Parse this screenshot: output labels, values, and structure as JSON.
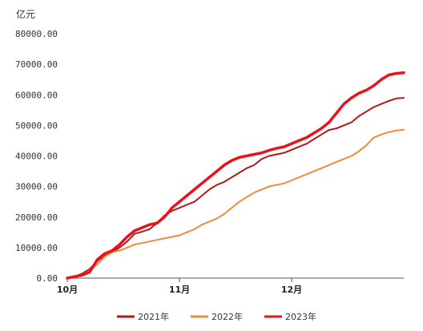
{
  "chart_data": {
    "type": "line",
    "unit_label": "亿元",
    "ylim": [
      0,
      80000
    ],
    "yticks": [
      0,
      10000,
      20000,
      30000,
      40000,
      50000,
      60000,
      70000,
      80000
    ],
    "ytick_labels": [
      "0.00",
      "10000.00",
      "20000.00",
      "30000.00",
      "40000.00",
      "50000.00",
      "60000.00",
      "70000.00",
      "80000.00"
    ],
    "xlim": [
      0,
      90
    ],
    "xticks": [
      {
        "label": "10月",
        "x": 0
      },
      {
        "label": "11月",
        "x": 30
      },
      {
        "label": "12月",
        "x": 60
      }
    ],
    "grid": false,
    "legend_position": "bottom",
    "series": [
      {
        "name": "2021年",
        "color": "#b3181b",
        "width": 2,
        "x": [
          0,
          2,
          4,
          6,
          8,
          10,
          12,
          14,
          16,
          18,
          20,
          22,
          24,
          26,
          28,
          30,
          32,
          34,
          36,
          38,
          40,
          42,
          44,
          46,
          48,
          50,
          52,
          54,
          56,
          58,
          60,
          62,
          64,
          66,
          68,
          70,
          72,
          74,
          76,
          78,
          80,
          82,
          84,
          86,
          88,
          90
        ],
        "values": [
          0,
          500,
          1500,
          3000,
          5500,
          7500,
          8500,
          10000,
          12000,
          14500,
          15200,
          16000,
          18000,
          20500,
          22000,
          23000,
          24000,
          25000,
          27000,
          29000,
          30500,
          31500,
          33000,
          34500,
          36000,
          37000,
          39000,
          40000,
          40500,
          41000,
          42000,
          43000,
          44000,
          45500,
          47000,
          48500,
          49000,
          50000,
          51000,
          53000,
          54500,
          56000,
          57000,
          58000,
          58800,
          59000
        ]
      },
      {
        "name": "2022年",
        "color": "#f08b3a",
        "width": 2,
        "x": [
          0,
          2,
          4,
          6,
          8,
          10,
          12,
          14,
          16,
          18,
          20,
          22,
          24,
          26,
          28,
          30,
          32,
          34,
          36,
          38,
          40,
          42,
          44,
          46,
          48,
          50,
          52,
          54,
          56,
          58,
          60,
          62,
          64,
          66,
          68,
          70,
          72,
          74,
          76,
          78,
          80,
          82,
          84,
          86,
          88,
          90
        ],
        "values": [
          0,
          300,
          1000,
          2500,
          4500,
          7000,
          8500,
          9000,
          10000,
          11000,
          11500,
          12000,
          12500,
          13000,
          13500,
          14000,
          15000,
          16000,
          17500,
          18500,
          19500,
          21000,
          23000,
          25000,
          26500,
          28000,
          29000,
          30000,
          30500,
          31000,
          32000,
          33000,
          34000,
          35000,
          36000,
          37000,
          38000,
          39000,
          40000,
          41500,
          43500,
          46000,
          47000,
          47800,
          48300,
          48600
        ]
      },
      {
        "name": "2023年",
        "color": "#e8141b",
        "width": 3.5,
        "x": [
          0,
          2,
          4,
          6,
          8,
          10,
          12,
          14,
          16,
          18,
          20,
          22,
          24,
          26,
          28,
          30,
          32,
          34,
          36,
          38,
          40,
          42,
          44,
          46,
          48,
          50,
          52,
          54,
          56,
          58,
          60,
          62,
          64,
          66,
          68,
          70,
          72,
          74,
          76,
          78,
          80,
          82,
          84,
          86,
          88,
          90
        ],
        "values": [
          0,
          500,
          1000,
          2000,
          6000,
          8000,
          9000,
          11000,
          13500,
          15500,
          16500,
          17500,
          18000,
          20000,
          23000,
          25000,
          27000,
          29000,
          31000,
          33000,
          35000,
          37000,
          38500,
          39500,
          40000,
          40500,
          41000,
          41800,
          42500,
          43000,
          44000,
          45000,
          46000,
          47500,
          49000,
          51000,
          54000,
          57000,
          59000,
          60500,
          61500,
          63000,
          65000,
          66500,
          67000,
          67200
        ]
      }
    ]
  }
}
